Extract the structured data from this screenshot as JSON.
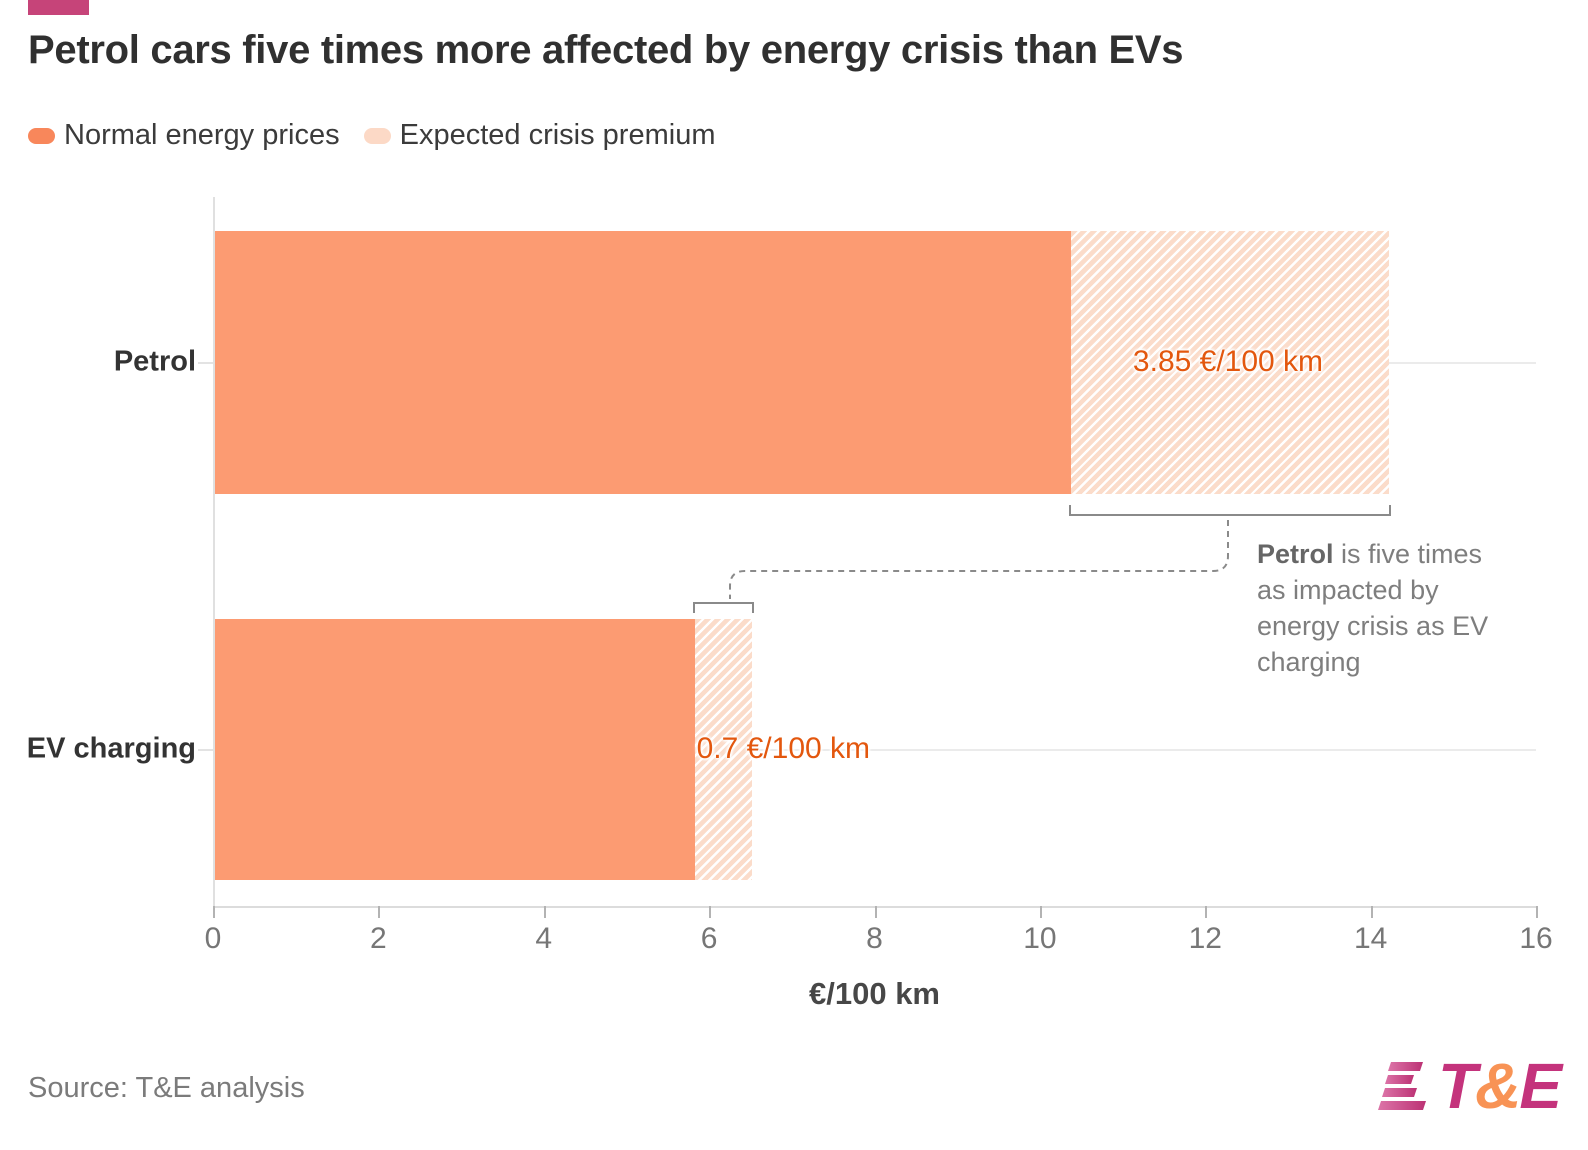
{
  "header": {
    "accent_color": "#C64479",
    "title": "Petrol cars five times more affected by energy crisis than EVs"
  },
  "legend": [
    {
      "label": "Normal energy prices",
      "color": "#F8875B"
    },
    {
      "label": "Expected crisis premium",
      "color": "#FCD9C6"
    }
  ],
  "chart_data": {
    "type": "bar",
    "orientation": "horizontal",
    "stacked": true,
    "categories": [
      "Petrol",
      "EV charging"
    ],
    "series": [
      {
        "name": "Normal energy prices",
        "values": [
          10.35,
          5.8
        ],
        "color": "#FC9B72",
        "pattern": "solid"
      },
      {
        "name": "Expected crisis premium",
        "values": [
          3.85,
          0.7
        ],
        "color": "#FBDCCA",
        "pattern": "diagonal-hatch-white"
      }
    ],
    "totals": [
      14.2,
      6.5
    ],
    "bar_labels": [
      "3.85 €/100 km",
      "0.7 €/100 km"
    ],
    "value_label_color": "#E3570E",
    "xlabel": "€/100 km",
    "xlim": [
      0,
      16
    ],
    "xticks": [
      0,
      2,
      4,
      6,
      8,
      10,
      12,
      14,
      16
    ],
    "grid": "horizontal row lines, light gray",
    "legend_position": "top-left"
  },
  "annotation": {
    "bold": "Petrol",
    "text": " is five times as impacted by energy crisis as EV charging"
  },
  "footer": {
    "source": "Source: T&E analysis",
    "logo_t": "T",
    "logo_amp": "&",
    "logo_e": "E",
    "logo_pink": "#C4337C",
    "logo_orange": "#F89355"
  }
}
